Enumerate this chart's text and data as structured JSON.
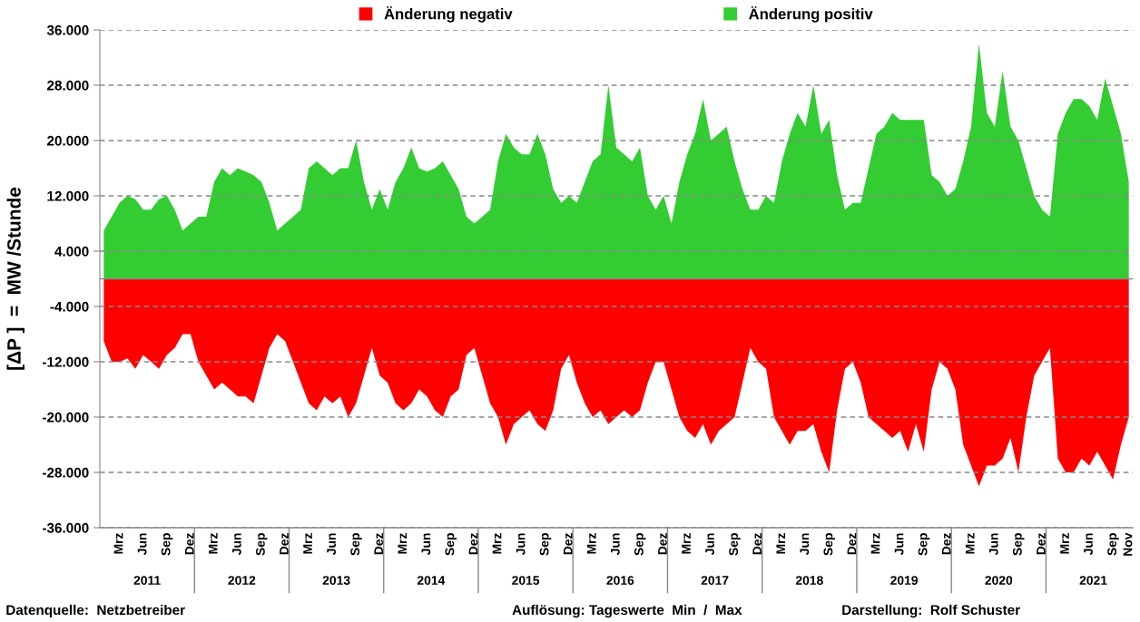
{
  "chart_data": {
    "type": "area",
    "ylabel": "[ΔP ]  =  MW /Stunde",
    "categories": [
      null,
      null,
      "Mrz",
      null,
      null,
      "Jun",
      null,
      null,
      "Sep",
      null,
      null,
      "Dez",
      null,
      null,
      "Mrz",
      null,
      null,
      "Jun",
      null,
      null,
      "Sep",
      null,
      null,
      "Dez",
      null,
      null,
      "Mrz",
      null,
      null,
      "Jun",
      null,
      null,
      "Sep",
      null,
      null,
      "Dez",
      null,
      null,
      "Mrz",
      null,
      null,
      "Jun",
      null,
      null,
      "Sep",
      null,
      null,
      "Dez",
      null,
      null,
      "Mrz",
      null,
      null,
      "Jun",
      null,
      null,
      "Sep",
      null,
      null,
      "Dez",
      null,
      null,
      "Mrz",
      null,
      null,
      "Jun",
      null,
      null,
      "Sep",
      null,
      null,
      "Dez",
      null,
      null,
      "Mrz",
      null,
      null,
      "Jun",
      null,
      null,
      "Sep",
      null,
      null,
      "Dez",
      null,
      null,
      "Mrz",
      null,
      null,
      "Jun",
      null,
      null,
      "Sep",
      null,
      null,
      "Dez",
      null,
      null,
      "Mrz",
      null,
      null,
      "Jun",
      null,
      null,
      "Sep",
      null,
      null,
      "Dez",
      null,
      null,
      "Mrz",
      null,
      null,
      "Jun",
      null,
      null,
      "Sep",
      null,
      null,
      "Dez",
      null,
      null,
      "Mrz",
      null,
      null,
      "Jun",
      null,
      null,
      "Sep",
      null,
      "Nov"
    ],
    "series": [
      {
        "name": "Änderung negativ",
        "color": "#ff0000",
        "values": [
          -9000,
          -12000,
          -12000,
          -11500,
          -13000,
          -11000,
          -12000,
          -13000,
          -11000,
          -10000,
          -8000,
          -8000,
          -12000,
          -14000,
          -16000,
          -15000,
          -16000,
          -17000,
          -17000,
          -18000,
          -14000,
          -10000,
          -8000,
          -9000,
          -12000,
          -15000,
          -18000,
          -19000,
          -17000,
          -18000,
          -17000,
          -20000,
          -18000,
          -14000,
          -10000,
          -14000,
          -15000,
          -18000,
          -19000,
          -18000,
          -16000,
          -17000,
          -19000,
          -20000,
          -17000,
          -16000,
          -11000,
          -10000,
          -14000,
          -18000,
          -20000,
          -24000,
          -21000,
          -20000,
          -19000,
          -21000,
          -22000,
          -19000,
          -13000,
          -11000,
          -15000,
          -18000,
          -20000,
          -19000,
          -21000,
          -20000,
          -19000,
          -20000,
          -19000,
          -15000,
          -12000,
          -12000,
          -16000,
          -20000,
          -22000,
          -23000,
          -21000,
          -24000,
          -22000,
          -21000,
          -20000,
          -15000,
          -10000,
          -12000,
          -13000,
          -20000,
          -22000,
          -24000,
          -22000,
          -22000,
          -21000,
          -25000,
          -28000,
          -19000,
          -13000,
          -12000,
          -15000,
          -20000,
          -21000,
          -22000,
          -23000,
          -22000,
          -25000,
          -21000,
          -25000,
          -16000,
          -12000,
          -13000,
          -16000,
          -24000,
          -27000,
          -30000,
          -27000,
          -27000,
          -26000,
          -23000,
          -28000,
          -20000,
          -14000,
          -12000,
          -10000,
          -26000,
          -28000,
          -28000,
          -26000,
          -27000,
          -25000,
          -27000,
          -29000,
          -24000,
          -20000
        ]
      },
      {
        "name": "Änderung positiv",
        "color": "#33cc33",
        "values": [
          7000,
          9000,
          11000,
          12000,
          11500,
          10000,
          10000,
          11500,
          12000,
          10000,
          7000,
          8000,
          9000,
          9000,
          14000,
          16000,
          15000,
          16000,
          15500,
          15000,
          14000,
          11000,
          7000,
          8000,
          9000,
          10000,
          16000,
          17000,
          16000,
          15000,
          16000,
          16000,
          20000,
          14000,
          10000,
          13000,
          10000,
          14000,
          16000,
          19000,
          16000,
          15500,
          16000,
          17000,
          15000,
          13000,
          9000,
          8000,
          9000,
          10000,
          17000,
          21000,
          19000,
          18000,
          18000,
          21000,
          18000,
          13000,
          11000,
          12000,
          11000,
          14000,
          17000,
          18000,
          28000,
          19000,
          18000,
          17000,
          19000,
          12000,
          10000,
          12000,
          8000,
          14000,
          18000,
          21000,
          26000,
          20000,
          21000,
          22000,
          17000,
          13000,
          10000,
          10000,
          12000,
          11000,
          17000,
          21000,
          24000,
          22000,
          28000,
          21000,
          23000,
          15000,
          10000,
          11000,
          11000,
          16000,
          21000,
          22000,
          24000,
          23000,
          23000,
          23000,
          23000,
          15000,
          14000,
          12000,
          13000,
          17000,
          22000,
          34000,
          24000,
          22000,
          30000,
          22000,
          20000,
          16000,
          12000,
          10000,
          9000,
          21000,
          24000,
          26000,
          26000,
          25000,
          23000,
          29000,
          25000,
          21000,
          14000
        ]
      }
    ],
    "x2lim": [
      2010.5,
      2021.4167
    ],
    "x2ticks": [
      2011,
      2012,
      2013,
      2014,
      2015,
      2016,
      2017,
      2018,
      2019,
      2020,
      2021
    ],
    "ylim": [
      -36000,
      36000
    ],
    "yticks": [
      {
        "value": -36000,
        "label": "-36.000"
      },
      {
        "value": -28000,
        "label": "-28.000"
      },
      {
        "value": -20000,
        "label": "-20.000"
      },
      {
        "value": -12000,
        "label": "-12.000"
      },
      {
        "value": -4000,
        "label": "-4.000"
      },
      {
        "value": 4000,
        "label": "4.000"
      },
      {
        "value": 12000,
        "label": "12.000"
      },
      {
        "value": 20000,
        "label": "20.000"
      },
      {
        "value": 28000,
        "label": "28.000"
      },
      {
        "value": 36000,
        "label": "36.000"
      }
    ],
    "grid": "y",
    "legend": "top",
    "annotations": [
      "Datenquelle:  Netzbetreiber",
      "Auflösung: Tageswerte  Min  /  Max",
      "Darstellung:  Rolf Schuster"
    ]
  }
}
